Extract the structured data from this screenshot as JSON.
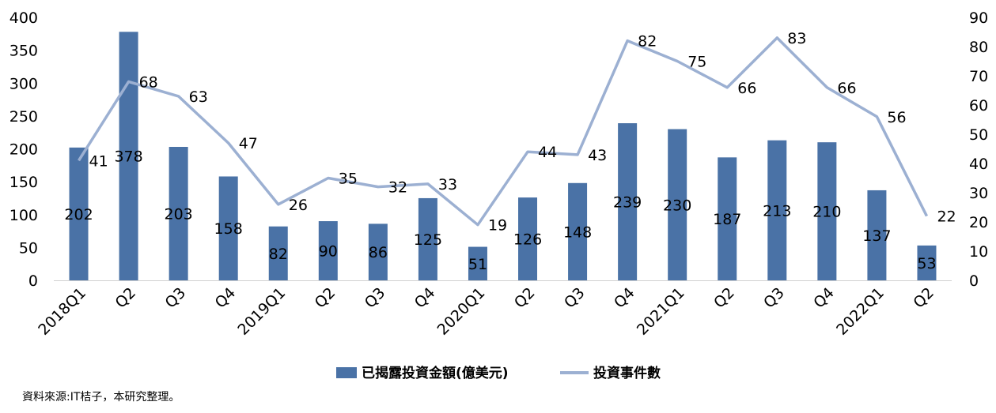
{
  "chart_data": {
    "type": "bar+line",
    "categories": [
      "2018Q1",
      "Q2",
      "Q3",
      "Q4",
      "2019Q1",
      "Q2",
      "Q3",
      "Q4",
      "2020Q1",
      "Q2",
      "Q3",
      "Q4",
      "2021Q1",
      "Q2",
      "Q3",
      "Q4",
      "2022Q1",
      "Q2"
    ],
    "series": [
      {
        "name": "已揭露投資金額(億美元)",
        "type": "bar",
        "axis": "left",
        "values": [
          202,
          378,
          203,
          158,
          82,
          90,
          86,
          125,
          51,
          126,
          148,
          239,
          230,
          187,
          213,
          210,
          137,
          53
        ]
      },
      {
        "name": "投資事件數",
        "type": "line",
        "axis": "right",
        "values": [
          41,
          68,
          63,
          47,
          26,
          35,
          32,
          33,
          19,
          44,
          43,
          82,
          75,
          66,
          83,
          66,
          56,
          22
        ]
      }
    ],
    "y_left": {
      "min": 0,
      "max": 400,
      "ticks": [
        0,
        50,
        100,
        150,
        200,
        250,
        300,
        350,
        400
      ]
    },
    "y_right": {
      "min": 0,
      "max": 90,
      "ticks": [
        0,
        10,
        20,
        30,
        40,
        50,
        60,
        70,
        80,
        90
      ]
    },
    "colors": {
      "bar": "#4a72a6",
      "line": "#9cb0d2"
    },
    "legend": "bottom",
    "grid": false
  },
  "source_note": "資料來源:IT桔子，本研究整理。"
}
